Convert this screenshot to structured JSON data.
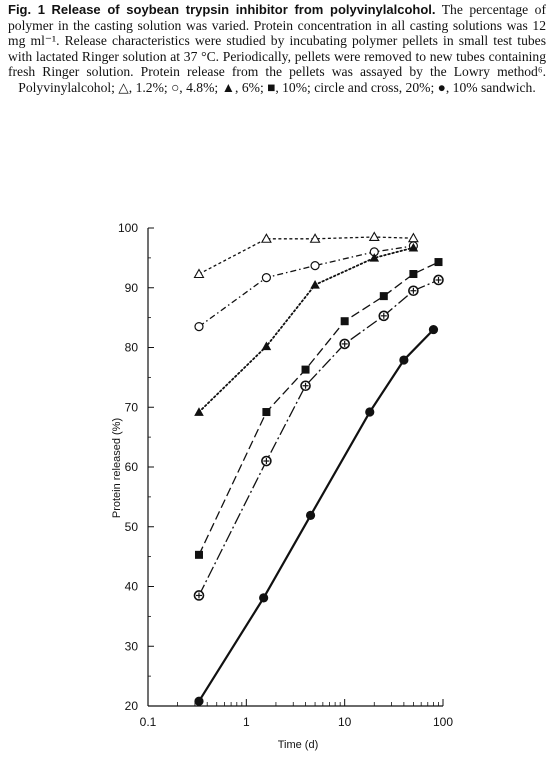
{
  "caption": {
    "label": "Fig. 1",
    "title": "Release of soybean trypsin inhibitor from polyvinylalcohol.",
    "body": "The percentage of polymer in the casting solution was varied. Protein concentration in all casting solutions was 12 mg ml⁻¹. Release characteristics were studied by incubating polymer pellets in small test tubes with lactated Ringer solution at 37 °C. Periodically, pellets were removed to new tubes containing fresh Ringer solution. Protein release from the pellets was assayed by the Lowry method⁶. Polyvinylalcohol; △, 1.2%; ○, 4.8%; ▲, 6%; ■, 10%; circle and cross, 20%; ●, 10% sandwich."
  },
  "chart_data": {
    "type": "line",
    "x_scale": "log",
    "xlabel": "Time (d)",
    "ylabel": "Protein released (%)",
    "xlim": [
      0.1,
      100
    ],
    "ylim": [
      20,
      100
    ],
    "x_ticks": [
      0.1,
      1,
      10,
      100
    ],
    "x_tick_labels": [
      "0.1",
      "1",
      "10",
      "100"
    ],
    "y_ticks": [
      20,
      30,
      40,
      50,
      60,
      70,
      80,
      90,
      100
    ],
    "grid": false,
    "legend": "in caption",
    "series": [
      {
        "marker": "open-triangle",
        "line": "short-dash",
        "x": [
          0.33,
          1.6,
          5,
          20,
          50
        ],
        "y": [
          92.3,
          98.2,
          98.2,
          98.5,
          98.3
        ]
      },
      {
        "marker": "open-circle",
        "line": "dash-dot",
        "x": [
          0.33,
          1.6,
          5,
          20,
          50
        ],
        "y": [
          83.5,
          91.7,
          93.7,
          96.0,
          97.0
        ]
      },
      {
        "marker": "filled-triangle",
        "line": "dotted",
        "x": [
          0.33,
          1.6,
          5,
          20,
          50
        ],
        "y": [
          69.2,
          80.2,
          90.5,
          95.0,
          96.7
        ]
      },
      {
        "marker": "filled-square",
        "line": "long-dash",
        "x": [
          0.33,
          1.6,
          4,
          10,
          25,
          50,
          90
        ],
        "y": [
          45.3,
          69.2,
          76.3,
          84.4,
          88.6,
          92.3,
          94.3
        ]
      },
      {
        "marker": "circle-cross",
        "line": "dash-dot-long",
        "x": [
          0.33,
          1.6,
          4,
          10,
          25,
          50,
          90
        ],
        "y": [
          38.5,
          61.0,
          73.6,
          80.6,
          85.3,
          89.5,
          91.3
        ]
      },
      {
        "marker": "filled-circle",
        "line": "solid-bold",
        "x": [
          0.33,
          1.5,
          4.5,
          18,
          40,
          80
        ],
        "y": [
          20.8,
          38.1,
          51.9,
          69.2,
          77.9,
          83.0
        ]
      }
    ]
  }
}
